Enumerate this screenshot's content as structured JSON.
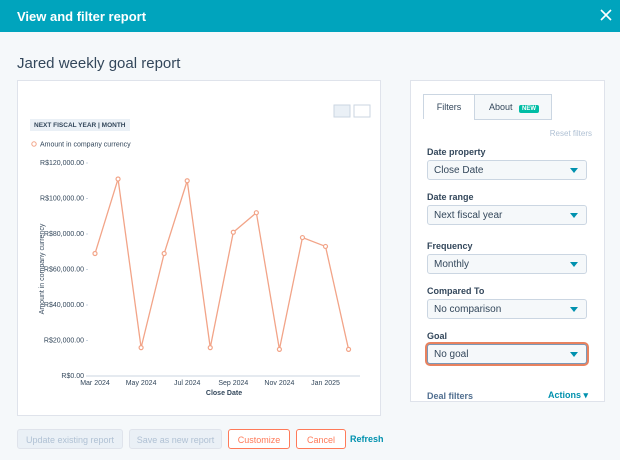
{
  "header": {
    "title": "View and filter report"
  },
  "report_title": "Jared weekly goal report",
  "chart_data": {
    "type": "line",
    "badge": "NEXT FISCAL YEAR | MONTH",
    "x_label": "Close Date",
    "y_label": "Amount in company currency",
    "categories": [
      "Mar 2024",
      null,
      "May 2024",
      null,
      "Jul 2024",
      null,
      "Sep 2024",
      null,
      "Nov 2024",
      null,
      "Jan 2025",
      null
    ],
    "series": [
      {
        "name": "Amount in company currency",
        "color": "#f2a488",
        "values": [
          69000,
          111000,
          16000,
          69000,
          110000,
          16000,
          81000,
          92000,
          15000,
          78000,
          73000,
          15000
        ]
      }
    ],
    "ylim": [
      0,
      120000
    ],
    "yticks": [
      {
        "value": 0,
        "label": "R$0.00"
      },
      {
        "value": 20000,
        "label": "R$20,000.00"
      },
      {
        "value": 40000,
        "label": "R$40,000.00"
      },
      {
        "value": 60000,
        "label": "R$60,000.00"
      },
      {
        "value": 80000,
        "label": "R$80,000.00"
      },
      {
        "value": 100000,
        "label": "R$100,000.00"
      },
      {
        "value": 120000,
        "label": "R$120,000.00"
      }
    ],
    "grid": false
  },
  "panel": {
    "tabs": [
      "Filters",
      "About"
    ],
    "new_badge": "NEW",
    "reset": "Reset filters",
    "fields": [
      {
        "label": "Date property",
        "value": "Close Date"
      },
      {
        "label": "Date range",
        "value": "Next fiscal year"
      },
      {
        "label": "Frequency",
        "value": "Monthly"
      },
      {
        "label": "Compared To",
        "value": "No comparison"
      },
      {
        "label": "Goal",
        "value": "No goal"
      }
    ],
    "deal_filters": "Deal filters",
    "actions": "Actions"
  },
  "buttons": [
    "Update existing report",
    "Save as new report",
    "Customize",
    "Cancel",
    "Refresh"
  ]
}
